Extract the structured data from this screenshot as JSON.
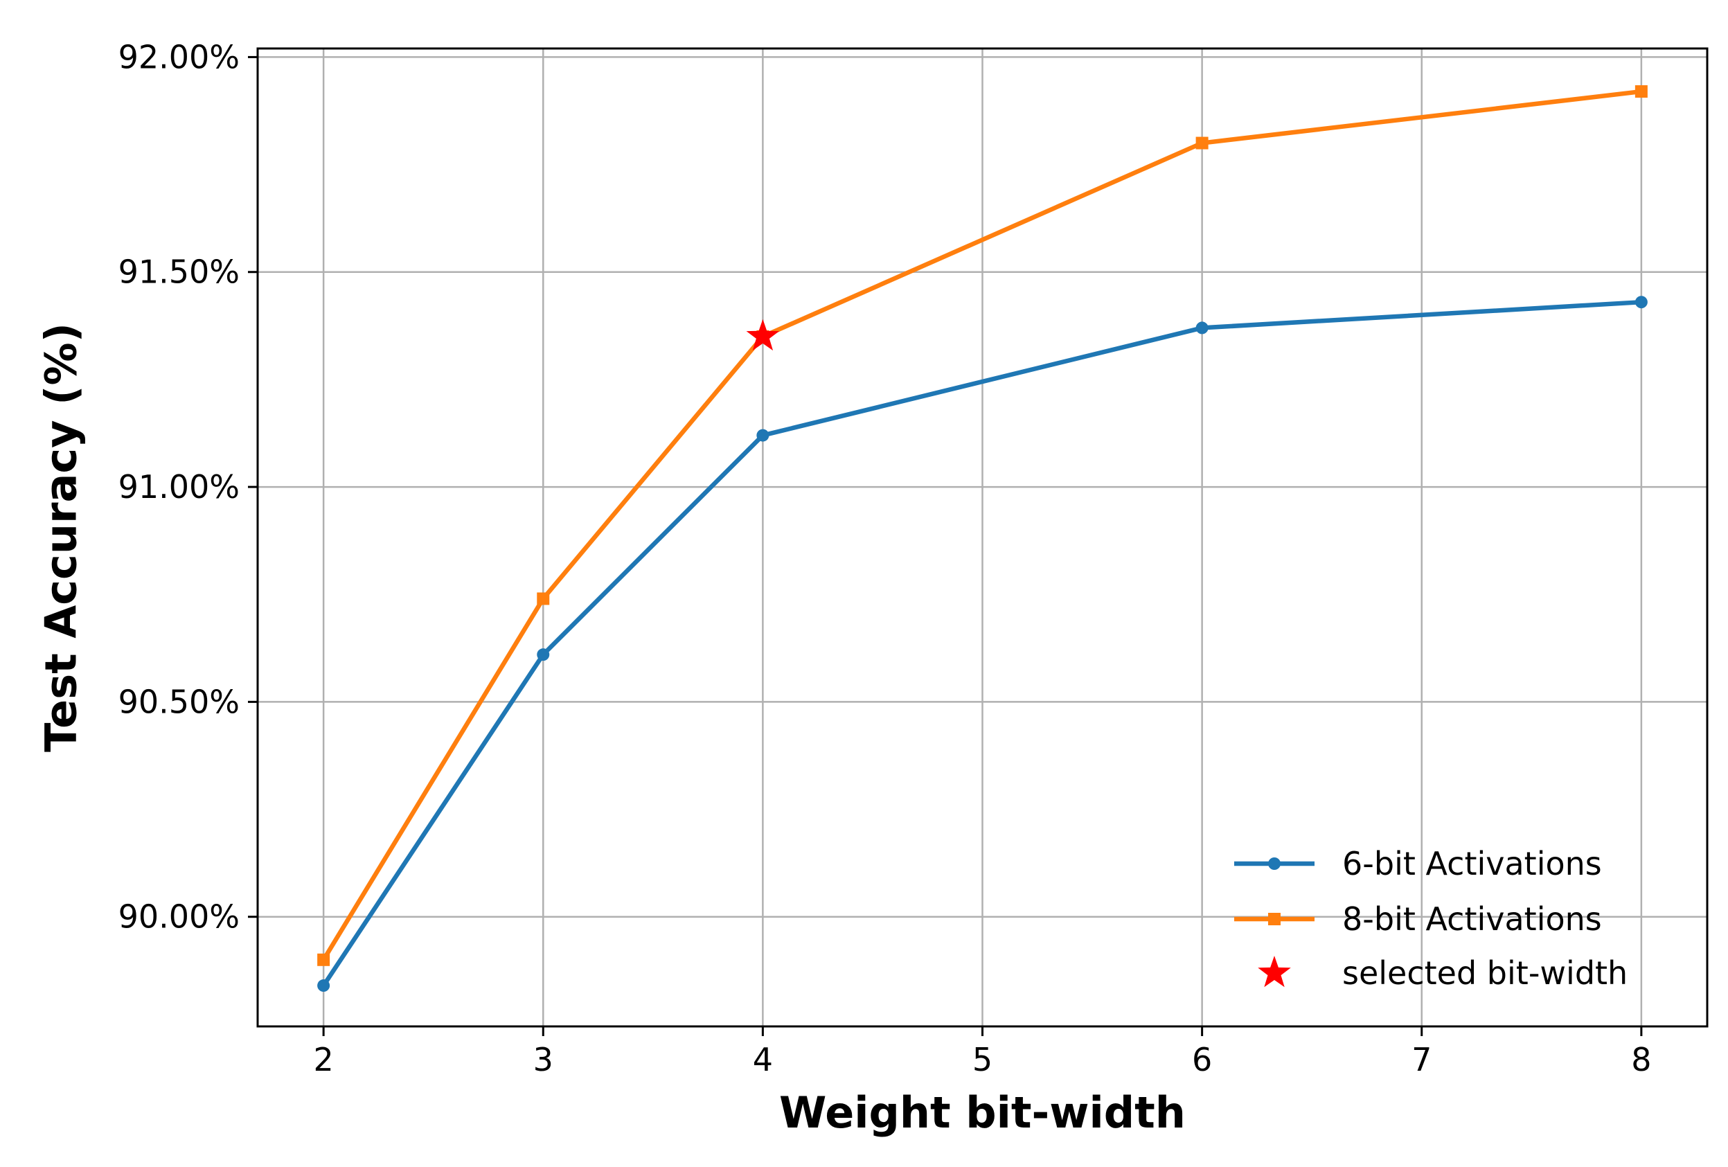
{
  "chart_data": {
    "type": "line",
    "xlabel": "Weight bit-width",
    "ylabel": "Test Accuracy (%)",
    "xlim": [
      1.7,
      8.3
    ],
    "ylim": [
      89.745,
      92.02
    ],
    "xticks": [
      2,
      3,
      4,
      5,
      6,
      7,
      8
    ],
    "xtick_labels": [
      "2",
      "3",
      "4",
      "5",
      "6",
      "7",
      "8"
    ],
    "yticks": [
      90.0,
      90.5,
      91.0,
      91.5,
      92.0
    ],
    "ytick_labels": [
      "90.00%",
      "90.50%",
      "91.00%",
      "91.50%",
      "92.00%"
    ],
    "grid": true,
    "legend_position": "lower-right",
    "series": [
      {
        "name": "6-bit Activations",
        "color": "#1f77b4",
        "marker": "circle",
        "x": [
          2,
          3,
          4,
          6,
          8
        ],
        "y": [
          89.84,
          90.61,
          91.12,
          91.37,
          91.43
        ]
      },
      {
        "name": "8-bit Activations",
        "color": "#ff7f0e",
        "marker": "square",
        "x": [
          2,
          3,
          4,
          6,
          8
        ],
        "y": [
          89.9,
          90.74,
          91.35,
          91.8,
          91.92
        ]
      }
    ],
    "highlight": {
      "name": "selected bit-width",
      "color": "#ff0000",
      "marker": "star",
      "x": 4,
      "y": 91.35
    }
  }
}
